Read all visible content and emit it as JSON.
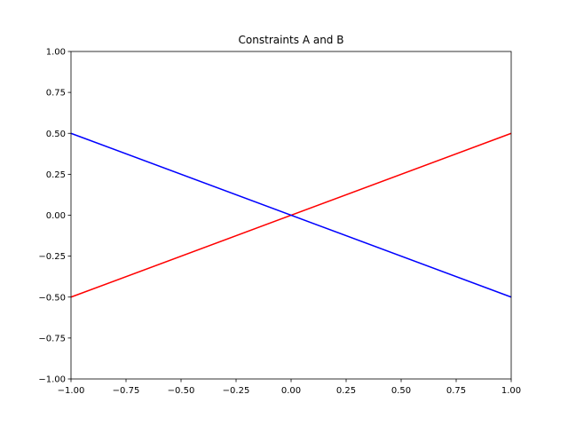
{
  "chart_data": {
    "type": "line",
    "title": "Constraints A and B",
    "xlabel": "",
    "ylabel": "",
    "xlim": [
      -1.0,
      1.0
    ],
    "ylim": [
      -1.0,
      1.0
    ],
    "x_ticks": [
      -1.0,
      -0.75,
      -0.5,
      -0.25,
      0.0,
      0.25,
      0.5,
      0.75,
      1.0
    ],
    "x_tick_labels": [
      "−1.00",
      "−0.75",
      "−0.50",
      "−0.25",
      "0.00",
      "0.25",
      "0.50",
      "0.75",
      "1.00"
    ],
    "y_ticks": [
      -1.0,
      -0.75,
      -0.5,
      -0.25,
      0.0,
      0.25,
      0.5,
      0.75,
      1.0
    ],
    "y_tick_labels": [
      "−1.00",
      "−0.75",
      "−0.50",
      "−0.25",
      "0.00",
      "0.25",
      "0.50",
      "0.75",
      "1.00"
    ],
    "grid": false,
    "legend": "none",
    "series": [
      {
        "color": "#ff0000",
        "x": [
          -1.0,
          1.0
        ],
        "y": [
          -0.5,
          0.5
        ]
      },
      {
        "color": "#0000ff",
        "x": [
          -1.0,
          1.0
        ],
        "y": [
          0.5,
          -0.5
        ]
      }
    ]
  }
}
